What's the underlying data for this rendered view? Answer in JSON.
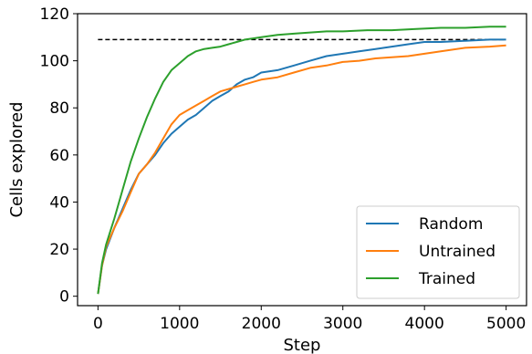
{
  "chart_data": {
    "type": "line",
    "title": "",
    "xlabel": "Step",
    "ylabel": "Cells explored",
    "xlim": [
      -250,
      5250
    ],
    "ylim": [
      -4,
      120
    ],
    "xticks": [
      0,
      1000,
      2000,
      3000,
      4000,
      5000
    ],
    "yticks": [
      0,
      20,
      40,
      60,
      80,
      100,
      120
    ],
    "grid": false,
    "legend": "bottom-right",
    "reference_line": {
      "y": 109,
      "x_range": [
        0,
        5000
      ],
      "style": "dashed",
      "color": "#000000"
    },
    "series": [
      {
        "name": "Random",
        "color": "#1f77b4",
        "points": [
          [
            0,
            1
          ],
          [
            50,
            13
          ],
          [
            100,
            20
          ],
          [
            200,
            29
          ],
          [
            300,
            37
          ],
          [
            400,
            45
          ],
          [
            500,
            52
          ],
          [
            600,
            56
          ],
          [
            700,
            60
          ],
          [
            800,
            65
          ],
          [
            900,
            69
          ],
          [
            1000,
            72
          ],
          [
            1100,
            75
          ],
          [
            1200,
            77
          ],
          [
            1300,
            80
          ],
          [
            1400,
            83
          ],
          [
            1500,
            85
          ],
          [
            1600,
            87
          ],
          [
            1700,
            90
          ],
          [
            1800,
            92
          ],
          [
            1900,
            93
          ],
          [
            2000,
            95
          ],
          [
            2200,
            96
          ],
          [
            2400,
            98
          ],
          [
            2600,
            100
          ],
          [
            2800,
            102
          ],
          [
            3000,
            103
          ],
          [
            3200,
            104
          ],
          [
            3400,
            105
          ],
          [
            3600,
            106
          ],
          [
            3800,
            107
          ],
          [
            4000,
            108
          ],
          [
            4200,
            108
          ],
          [
            4500,
            108.5
          ],
          [
            4800,
            109
          ],
          [
            5000,
            109
          ]
        ]
      },
      {
        "name": "Untrained",
        "color": "#ff7f0e",
        "points": [
          [
            0,
            1
          ],
          [
            50,
            13
          ],
          [
            100,
            21
          ],
          [
            200,
            29
          ],
          [
            300,
            36
          ],
          [
            400,
            44
          ],
          [
            500,
            52
          ],
          [
            600,
            56
          ],
          [
            700,
            61
          ],
          [
            800,
            67
          ],
          [
            900,
            73
          ],
          [
            1000,
            77
          ],
          [
            1100,
            79
          ],
          [
            1200,
            81
          ],
          [
            1300,
            83
          ],
          [
            1400,
            85
          ],
          [
            1500,
            87
          ],
          [
            1600,
            88
          ],
          [
            1700,
            89
          ],
          [
            1800,
            90
          ],
          [
            1900,
            91
          ],
          [
            2000,
            92
          ],
          [
            2200,
            93
          ],
          [
            2400,
            95
          ],
          [
            2600,
            97
          ],
          [
            2800,
            98
          ],
          [
            3000,
            99.5
          ],
          [
            3200,
            100
          ],
          [
            3400,
            101
          ],
          [
            3600,
            101.5
          ],
          [
            3800,
            102
          ],
          [
            4000,
            103
          ],
          [
            4200,
            104
          ],
          [
            4500,
            105.5
          ],
          [
            4800,
            106
          ],
          [
            5000,
            106.5
          ]
        ]
      },
      {
        "name": "Trained",
        "color": "#2ca02c",
        "points": [
          [
            0,
            1
          ],
          [
            50,
            14
          ],
          [
            100,
            22
          ],
          [
            200,
            33
          ],
          [
            300,
            45
          ],
          [
            400,
            57
          ],
          [
            500,
            67
          ],
          [
            600,
            76
          ],
          [
            700,
            84
          ],
          [
            800,
            91
          ],
          [
            900,
            96
          ],
          [
            1000,
            99
          ],
          [
            1100,
            102
          ],
          [
            1200,
            104
          ],
          [
            1300,
            105
          ],
          [
            1400,
            105.5
          ],
          [
            1500,
            106
          ],
          [
            1600,
            107
          ],
          [
            1700,
            108
          ],
          [
            1800,
            109
          ],
          [
            1900,
            109.5
          ],
          [
            2000,
            110
          ],
          [
            2200,
            111
          ],
          [
            2400,
            111.5
          ],
          [
            2600,
            112
          ],
          [
            2800,
            112.5
          ],
          [
            3000,
            112.5
          ],
          [
            3300,
            113
          ],
          [
            3600,
            113
          ],
          [
            3900,
            113.5
          ],
          [
            4200,
            114
          ],
          [
            4500,
            114
          ],
          [
            4800,
            114.5
          ],
          [
            5000,
            114.5
          ]
        ]
      }
    ]
  }
}
